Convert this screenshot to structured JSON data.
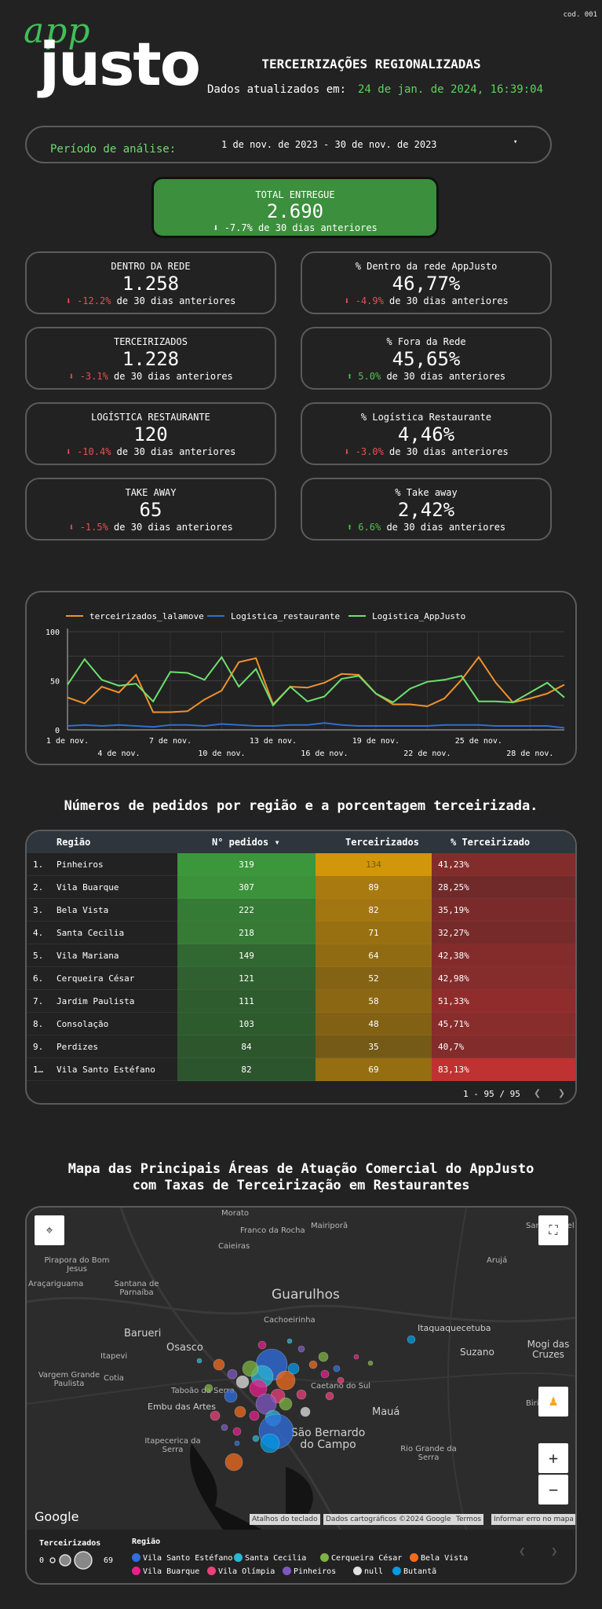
{
  "header": {
    "code": "cod. 001",
    "logo_top": "app",
    "logo_bottom": "justo",
    "title": "TERCEIRIZAÇÕES REGIONALIZADAS",
    "updated_label": "Dados atualizados em:",
    "updated_value": "24 de jan. de 2024, 16:39:04"
  },
  "period": {
    "label": "Período de análise:",
    "value": "1 de nov. de 2023 - 30 de nov. de 2023",
    "caret": "▾"
  },
  "total": {
    "label": "TOTAL ENTREGUE",
    "value": "2.690",
    "arrow": "⬇",
    "delta": "-7.7%",
    "suffix": "de 30 dias anteriores"
  },
  "kpis": [
    {
      "label": "DENTRO DA REDE",
      "value": "1.258",
      "arrow": "⬇",
      "delta": "-12.2%",
      "suffix": "de 30 dias anteriores",
      "trend": "down"
    },
    {
      "label": "% Dentro da rede AppJusto",
      "value": "46,77%",
      "arrow": "⬇",
      "delta": "-4.9%",
      "suffix": "de 30 dias anteriores",
      "trend": "down"
    },
    {
      "label": "TERCEIRIZADOS",
      "value": "1.228",
      "arrow": "⬇",
      "delta": "-3.1%",
      "suffix": "de 30 dias anteriores",
      "trend": "down"
    },
    {
      "label": "% Fora da Rede",
      "value": "45,65%",
      "arrow": "⬆",
      "delta": "5.0%",
      "suffix": "de 30 dias anteriores",
      "trend": "up"
    },
    {
      "label": "LOGÍSTICA RESTAURANTE",
      "value": "120",
      "arrow": "⬇",
      "delta": "-10.4%",
      "suffix": "de 30 dias anteriores",
      "trend": "down"
    },
    {
      "label": "% Logística Restaurante",
      "value": "4,46%",
      "arrow": "⬇",
      "delta": "-3.0%",
      "suffix": "de 30 dias anteriores",
      "trend": "down"
    },
    {
      "label": "TAKE AWAY",
      "value": "65",
      "arrow": "⬇",
      "delta": "-1.5%",
      "suffix": "de 30 dias anteriores",
      "trend": "down"
    },
    {
      "label": "% Take away",
      "value": "2,42%",
      "arrow": "⬆",
      "delta": "6.6%",
      "suffix": "de 30 dias anteriores",
      "trend": "up"
    }
  ],
  "chart_data": {
    "type": "line",
    "grid": true,
    "legend_position": "top",
    "ylim": [
      0,
      100
    ],
    "yticks": [
      "0",
      "50",
      "100"
    ],
    "x_labels_row1": [
      "1 de nov.",
      "7 de nov.",
      "13 de nov.",
      "19 de nov.",
      "25 de nov."
    ],
    "x_labels_row2": [
      "4 de nov.",
      "10 de nov.",
      "16 de nov.",
      "22 de nov.",
      "28 de nov."
    ],
    "x": [
      1,
      2,
      3,
      4,
      5,
      6,
      7,
      8,
      9,
      10,
      11,
      12,
      13,
      14,
      15,
      16,
      17,
      18,
      19,
      20,
      21,
      22,
      23,
      24,
      25,
      26,
      27,
      28,
      29,
      30
    ],
    "series": [
      {
        "name": "terceirizados_lalamove",
        "color": "#f0922a",
        "values": [
          33,
          27,
          44,
          38,
          56,
          18,
          18,
          19,
          31,
          40,
          69,
          73,
          26,
          44,
          43,
          48,
          57,
          56,
          37,
          26,
          26,
          24,
          32,
          51,
          74,
          48,
          28,
          32,
          37,
          46
        ]
      },
      {
        "name": "Logistica_restaurante",
        "color": "#2f6fd0",
        "values": [
          4,
          5,
          4,
          5,
          4,
          3,
          5,
          5,
          4,
          6,
          5,
          4,
          4,
          5,
          5,
          7,
          5,
          4,
          4,
          4,
          4,
          4,
          5,
          5,
          5,
          4,
          4,
          4,
          4,
          2
        ]
      },
      {
        "name": "Logistica_AppJusto",
        "color": "#6fe06f",
        "values": [
          46,
          72,
          51,
          45,
          47,
          29,
          59,
          58,
          51,
          74,
          44,
          62,
          25,
          44,
          29,
          34,
          52,
          55,
          37,
          28,
          42,
          49,
          51,
          55,
          29,
          29,
          28,
          38,
          48,
          33
        ]
      }
    ]
  },
  "region_section": {
    "title": "Números de pedidos por região e a porcentagem terceirizada."
  },
  "table": {
    "headers": [
      "Região",
      "N° pedidos ▾",
      "Terceirizados",
      "% Terceirizado"
    ],
    "rows": [
      {
        "idx": "1.",
        "regiao": "Pinheiros",
        "pedidos": "319",
        "terc": "134",
        "pct": "41,23%"
      },
      {
        "idx": "2.",
        "regiao": "Vila Buarque",
        "pedidos": "307",
        "terc": "89",
        "pct": "28,25%"
      },
      {
        "idx": "3.",
        "regiao": "Bela Vista",
        "pedidos": "222",
        "terc": "82",
        "pct": "35,19%"
      },
      {
        "idx": "4.",
        "regiao": "Santa Cecilia",
        "pedidos": "218",
        "terc": "71",
        "pct": "32,27%"
      },
      {
        "idx": "5.",
        "regiao": "Vila Mariana",
        "pedidos": "149",
        "terc": "64",
        "pct": "42,38%"
      },
      {
        "idx": "6.",
        "regiao": "Cerqueira César",
        "pedidos": "121",
        "terc": "52",
        "pct": "42,98%"
      },
      {
        "idx": "7.",
        "regiao": "Jardim Paulista",
        "pedidos": "111",
        "terc": "58",
        "pct": "51,33%"
      },
      {
        "idx": "8.",
        "regiao": "Consolação",
        "pedidos": "103",
        "terc": "48",
        "pct": "45,71%"
      },
      {
        "idx": "9.",
        "regiao": "Perdizes",
        "pedidos": "84",
        "terc": "35",
        "pct": "40,7%"
      },
      {
        "idx": "1…",
        "regiao": "Vila Santo Estéfano",
        "pedidos": "82",
        "terc": "69",
        "pct": "83,13%"
      }
    ],
    "pager": "1 - 95 / 95",
    "prev": "❮",
    "next": "❯"
  },
  "map_section": {
    "title_line1": "Mapa das Principais Áreas de Atuação Comercial do AppJusto",
    "title_line2": "com Taxas de Terceirização em Restaurantes",
    "place_labels": [
      "Morato",
      "Franco da Rocha",
      "Mairiporã",
      "Santa Isabel",
      "Caieiras",
      "Pirapora do Bom Jesus",
      "Arujá",
      "Araçariguama",
      "Santana de Parnaíba",
      "Guarulhos",
      "Cachoeirinha",
      "Barueri",
      "Itaquaquecetuba",
      "Osasco",
      "Mogi das Cruzes",
      "Itapevi",
      "Suzano",
      "Vargem Grande Paulista",
      "Cotia",
      "Caetano do Sul",
      "Taboão da Serra",
      "Embu das Artes",
      "Mauá",
      "Biritiba",
      "Itapecerica da Serra",
      "São Bernardo do Campo",
      "Rio Grande da Serra"
    ],
    "google": "Google",
    "attrib": [
      "Atalhos do teclado",
      "Dados cartográficos ©2024 Google",
      "Termos",
      "Informar erro no mapa"
    ],
    "size_legend_title": "Terceirizados",
    "size_min": "0",
    "size_max": "69",
    "color_legend_title": "Região",
    "regions": [
      {
        "name": "Vila Santo Estéfano",
        "color": "#2f6fe0"
      },
      {
        "name": "Santa Cecilia",
        "color": "#29b6d6"
      },
      {
        "name": "Cerqueira César",
        "color": "#7cb342"
      },
      {
        "name": "Bela Vista",
        "color": "#f26b1d"
      },
      {
        "name": "Vila Buarque",
        "color": "#e91e8c"
      },
      {
        "name": "Vila Olímpia",
        "color": "#ec407a"
      },
      {
        "name": "Pinheiros",
        "color": "#7e57c2"
      },
      {
        "name": "null",
        "color": "#e0e0e0"
      },
      {
        "name": "Butantã",
        "color": "#039be5"
      }
    ]
  }
}
